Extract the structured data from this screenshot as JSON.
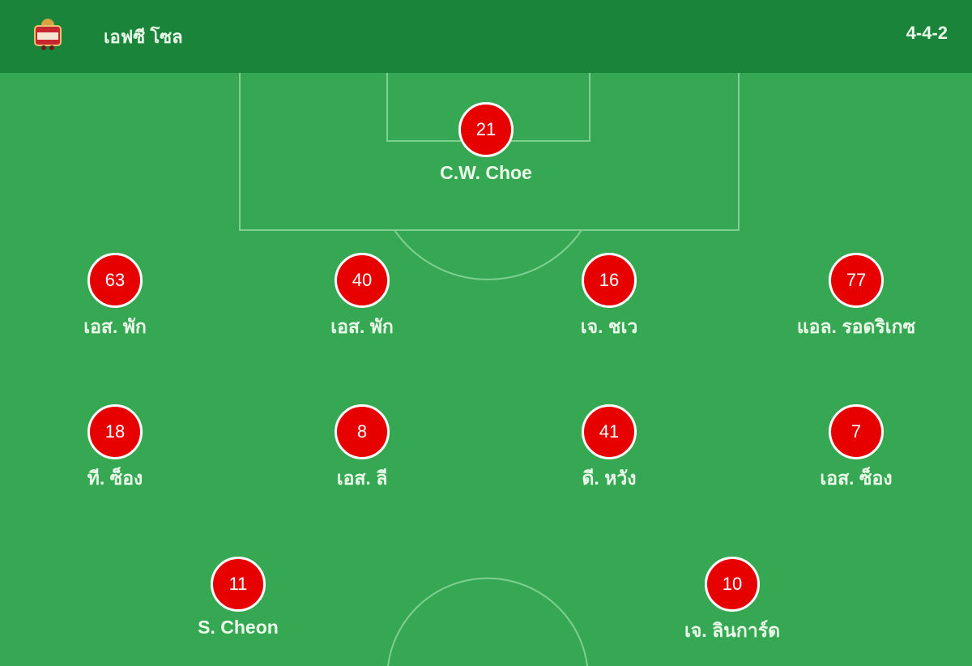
{
  "header": {
    "team_name": "เอฟซี โซล",
    "formation": "4-4-2",
    "logo_icon": "team-crest",
    "logo_text": "Seoul"
  },
  "colors": {
    "header": "#1a843b",
    "pitch": "#36a853",
    "player_disc": "#e60000"
  },
  "players": [
    {
      "number": "21",
      "name": "C.W. Choe"
    },
    {
      "number": "63",
      "name": "เอส. พัก"
    },
    {
      "number": "40",
      "name": "เอส. พัก"
    },
    {
      "number": "16",
      "name": "เจ. ชเว"
    },
    {
      "number": "77",
      "name": "แอล. รอดริเกซ"
    },
    {
      "number": "18",
      "name": "ที. ซ็อง"
    },
    {
      "number": "8",
      "name": "เอส. ลี"
    },
    {
      "number": "41",
      "name": "ดี. หวัง"
    },
    {
      "number": "7",
      "name": "เอส. ซ็อง"
    },
    {
      "number": "11",
      "name": "S. Cheon"
    },
    {
      "number": "10",
      "name": "เจ. ลินการ์ด"
    }
  ]
}
